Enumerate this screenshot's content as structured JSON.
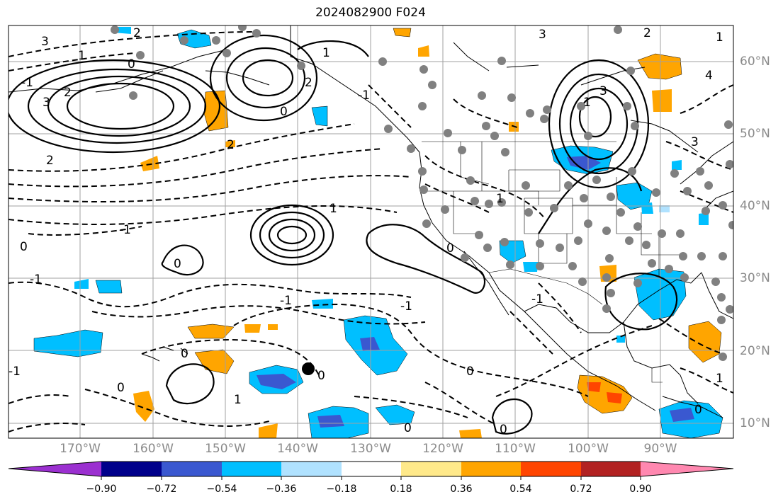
{
  "title": "2024082900 F024",
  "lat_labels": [
    "60°N",
    "50°N",
    "40°N",
    "30°N",
    "20°N",
    "10°N"
  ],
  "lon_labels": [
    "170°W",
    "160°W",
    "150°W",
    "140°W",
    "130°W",
    "120°W",
    "110°W",
    "100°W",
    "90°W"
  ],
  "colorbar": {
    "colors": [
      "#9b30d0",
      "#00008b",
      "#3a58d0",
      "#00bfff",
      "#b0e2ff",
      "#ffffff",
      "#ffe98a",
      "#ffa500",
      "#ff4500",
      "#b22222",
      "#ff88b0"
    ],
    "ticks": [
      "−0.90",
      "−0.72",
      "−0.54",
      "−0.36",
      "−0.18",
      "0.18",
      "0.36",
      "0.54",
      "0.72",
      "0.90"
    ]
  },
  "contour_labels": [
    "3",
    "2",
    "1",
    "0",
    "-1",
    "2",
    "3",
    "1",
    "0",
    "-1",
    "2",
    "1",
    "0",
    "-1",
    "0",
    "-1",
    "-1",
    "0",
    "0",
    "0",
    "0",
    "-1",
    "0",
    "3",
    "2",
    "1",
    "3",
    "4",
    "1",
    "0",
    "-1",
    "1",
    "0",
    "1",
    "2",
    "1",
    "0",
    "-1",
    "2",
    "3"
  ]
}
